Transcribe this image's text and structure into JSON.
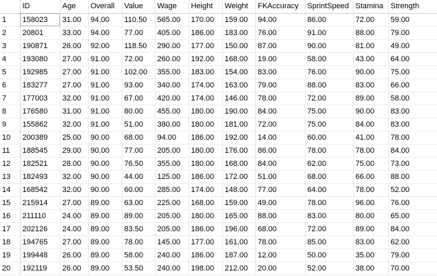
{
  "columns": [
    "ID",
    "Age",
    "Overall",
    "Value",
    "Wage",
    "Height",
    "Weight",
    "FKAccuracy",
    "SprintSpeed",
    "Stamina",
    "Strength"
  ],
  "rows": [
    {
      "n": "1",
      "cells": [
        "158023",
        "31.00",
        "94.00",
        "110.50",
        "565.00",
        "170.00",
        "159.00",
        "94.00",
        "86.00",
        "72.00",
        "59.00"
      ]
    },
    {
      "n": "2",
      "cells": [
        "20801",
        "33.00",
        "94.00",
        "77.00",
        "405.00",
        "186.00",
        "183.00",
        "76.00",
        "91.00",
        "88.00",
        "79.00"
      ]
    },
    {
      "n": "3",
      "cells": [
        "190871",
        "26.00",
        "92.00",
        "118.50",
        "290.00",
        "177.00",
        "150.00",
        "87.00",
        "90.00",
        "81.00",
        "49.00"
      ]
    },
    {
      "n": "4",
      "cells": [
        "193080",
        "27.00",
        "91.00",
        "72.00",
        "260.00",
        "192.00",
        "168.00",
        "19.00",
        "58.00",
        "43.00",
        "64.00"
      ]
    },
    {
      "n": "5",
      "cells": [
        "192985",
        "27.00",
        "91.00",
        "102.00",
        "355.00",
        "183.00",
        "154.00",
        "83.00",
        "76.00",
        "90.00",
        "75.00"
      ]
    },
    {
      "n": "6",
      "cells": [
        "183277",
        "27.00",
        "91.00",
        "93.00",
        "340.00",
        "174.00",
        "163.00",
        "79.00",
        "88.00",
        "83.00",
        "66.00"
      ]
    },
    {
      "n": "7",
      "cells": [
        "177003",
        "32.00",
        "91.00",
        "67.00",
        "420.00",
        "174.00",
        "146.00",
        "78.00",
        "72.00",
        "89.00",
        "58.00"
      ]
    },
    {
      "n": "8",
      "cells": [
        "176580",
        "31.00",
        "91.00",
        "80.00",
        "455.00",
        "180.00",
        "190.00",
        "84.00",
        "75.00",
        "90.00",
        "83.00"
      ]
    },
    {
      "n": "9",
      "cells": [
        "155862",
        "32.00",
        "91.00",
        "51.00",
        "380.00",
        "180.00",
        "181.00",
        "72.00",
        "75.00",
        "84.00",
        "83.00"
      ]
    },
    {
      "n": "10",
      "cells": [
        "200389",
        "25.00",
        "90.00",
        "68.00",
        "94.00",
        "186.00",
        "192.00",
        "14.00",
        "60.00",
        "41.00",
        "78.00"
      ]
    },
    {
      "n": "11",
      "cells": [
        "188545",
        "29.00",
        "90.00",
        "77.00",
        "205.00",
        "180.00",
        "176.00",
        "86.00",
        "78.00",
        "78.00",
        "84.00"
      ]
    },
    {
      "n": "12",
      "cells": [
        "182521",
        "28.00",
        "90.00",
        "76.50",
        "355.00",
        "180.00",
        "168.00",
        "84.00",
        "62.00",
        "75.00",
        "73.00"
      ]
    },
    {
      "n": "13",
      "cells": [
        "182493",
        "32.00",
        "90.00",
        "44.00",
        "125.00",
        "186.00",
        "172.00",
        "51.00",
        "68.00",
        "66.00",
        "88.00"
      ]
    },
    {
      "n": "14",
      "cells": [
        "168542",
        "32.00",
        "90.00",
        "60.00",
        "285.00",
        "174.00",
        "148.00",
        "77.00",
        "64.00",
        "78.00",
        "52.00"
      ]
    },
    {
      "n": "15",
      "cells": [
        "215914",
        "27.00",
        "89.00",
        "63.00",
        "225.00",
        "168.00",
        "159.00",
        "49.00",
        "78.00",
        "96.00",
        "76.00"
      ]
    },
    {
      "n": "16",
      "cells": [
        "211110",
        "24.00",
        "89.00",
        "89.00",
        "205.00",
        "180.00",
        "165.00",
        "88.00",
        "83.00",
        "80.00",
        "65.00"
      ]
    },
    {
      "n": "17",
      "cells": [
        "202126",
        "24.00",
        "89.00",
        "83.50",
        "205.00",
        "186.00",
        "196.00",
        "68.00",
        "72.00",
        "89.00",
        "84.00"
      ]
    },
    {
      "n": "18",
      "cells": [
        "194765",
        "27.00",
        "89.00",
        "78.00",
        "145.00",
        "177.00",
        "161.00",
        "78.00",
        "85.00",
        "83.00",
        "62.00"
      ]
    },
    {
      "n": "19",
      "cells": [
        "199448",
        "26.00",
        "89.00",
        "58.00",
        "240.00",
        "186.00",
        "187.00",
        "12.00",
        "50.00",
        "35.00",
        "79.00"
      ]
    },
    {
      "n": "20",
      "cells": [
        "192119",
        "26.00",
        "89.00",
        "53.50",
        "240.00",
        "198.00",
        "212.00",
        "20.00",
        "52.00",
        "38.00",
        "70.00"
      ]
    }
  ]
}
